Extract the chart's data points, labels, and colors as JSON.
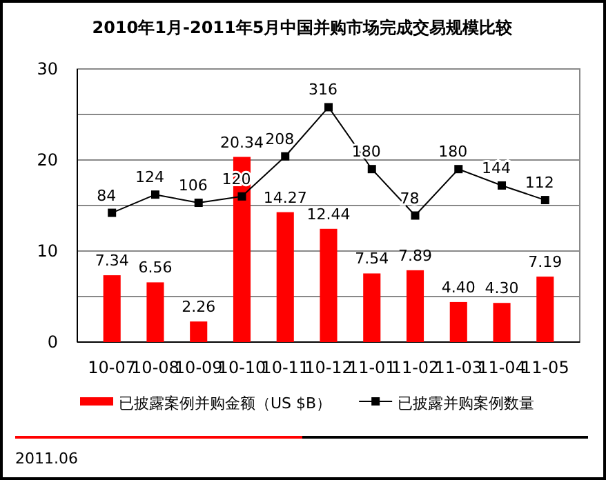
{
  "chart_data": {
    "type": "bar",
    "title": "2010年1月-2011年5月中国并购市场完成交易规模比较",
    "categories": [
      "10-07",
      "10-08",
      "10-09",
      "10-10",
      "10-11",
      "10-12",
      "11-01",
      "11-02",
      "11-03",
      "11-04",
      "11-05"
    ],
    "series": [
      {
        "name": "已披露案例并购金额（US $B）",
        "color": "#ff0000",
        "values": [
          7.34,
          6.56,
          2.26,
          20.34,
          14.27,
          12.44,
          7.54,
          7.89,
          4.4,
          4.3,
          7.19
        ],
        "value_labels": [
          "7.34",
          "6.56",
          "2.26",
          "20.34",
          "14.27",
          "12.44",
          "7.54",
          "7.89",
          "4.40",
          "4.30",
          "7.19"
        ]
      },
      {
        "name": "已披露并购案例数量",
        "type": "line",
        "axis": "y2",
        "color": "#000000",
        "values": [
          84,
          124,
          106,
          120,
          208,
          316,
          180,
          78,
          180,
          144,
          112
        ]
      }
    ],
    "ylim": [
      0,
      30
    ],
    "yticks": [
      0,
      {
        "value": 5,
        "label": null
      },
      10,
      {
        "value": 15,
        "label": null
      },
      20,
      {
        "value": 25,
        "label": null
      },
      30
    ],
    "y2lim": [
      -200,
      400
    ],
    "grid": "y",
    "legend": "bottom",
    "marker": "square",
    "data_labels": true,
    "annotations": [
      "2011.06"
    ]
  }
}
